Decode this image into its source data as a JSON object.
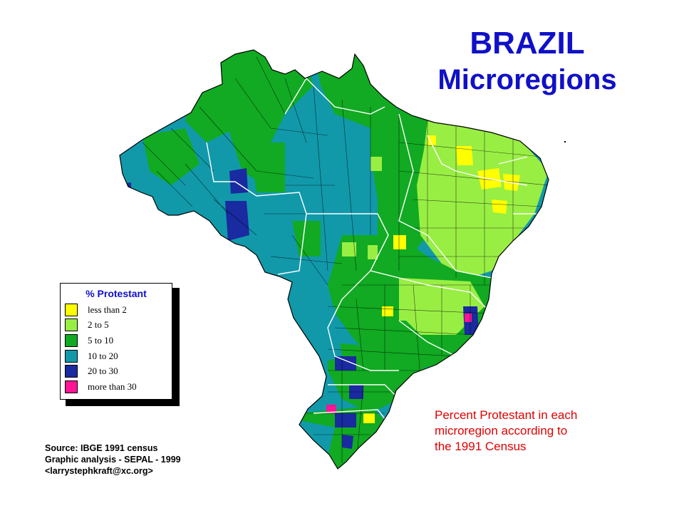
{
  "title": {
    "line1": "BRAZIL",
    "line2": "Microregions"
  },
  "legend": {
    "title": "% Protestant",
    "items": [
      {
        "label": "less than 2",
        "color": "#ffff00"
      },
      {
        "label": "2 to 5",
        "color": "#99ee44"
      },
      {
        "label": "5 to 10",
        "color": "#11aa22"
      },
      {
        "label": "10 to 20",
        "color": "#1199aa"
      },
      {
        "label": "20 to 30",
        "color": "#1a2aa0"
      },
      {
        "label": "more than 30",
        "color": "#ff1493"
      }
    ]
  },
  "caption": [
    "Percent Protestant in each",
    "microregion according to",
    "the 1991 Census"
  ],
  "source": [
    "Source: IBGE 1991 census",
    "Graphic analysis - SEPAL - 1999",
    "<larrystephkraft@xc.org>"
  ],
  "colors": {
    "title": "#1010c8",
    "caption": "#e00000",
    "borders": "#000000",
    "state_borders": "#ffffff"
  }
}
